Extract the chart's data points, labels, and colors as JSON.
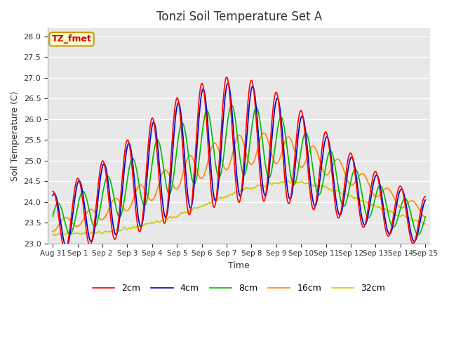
{
  "title": "Tonzi Soil Temperature Set A",
  "xlabel": "Time",
  "ylabel": "Soil Temperature (C)",
  "ylim": [
    23.0,
    28.2
  ],
  "yticks": [
    23.0,
    23.5,
    24.0,
    24.5,
    25.0,
    25.5,
    26.0,
    26.5,
    27.0,
    27.5,
    28.0
  ],
  "colors": {
    "2cm": "#ff0000",
    "4cm": "#0000cc",
    "8cm": "#00bb00",
    "16cm": "#ff8800",
    "32cm": "#cccc00"
  },
  "legend_labels": [
    "2cm",
    "4cm",
    "8cm",
    "16cm",
    "32cm"
  ],
  "annotation_text": "TZ_fmet",
  "annotation_color": "#cc0000",
  "annotation_bg": "#ffffcc",
  "bg_color": "#e8e8e8",
  "grid_color": "#ffffff",
  "n_points": 720,
  "total_days": 15
}
